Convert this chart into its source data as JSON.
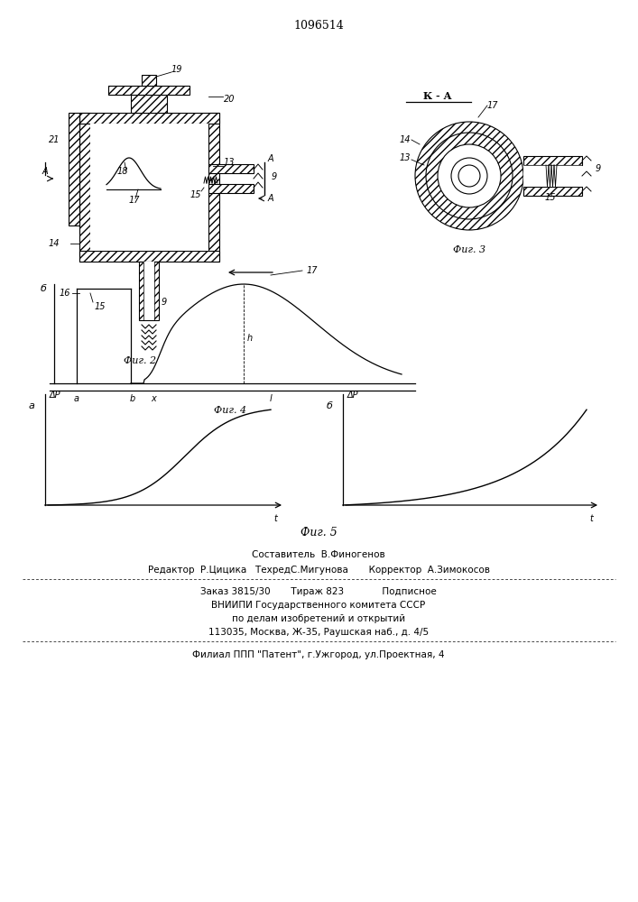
{
  "patent_number": "1096514",
  "background_color": "#ffffff",
  "line_color": "#000000",
  "footer_line1": "Составитель  В.Финогенов",
  "footer_line2": "Редактор  Р.Цицика   ТехредС.Мигунова       Корректор  А.Зимокосов",
  "footer_line3": "Заказ 3815/30       Тираж 823             Подписное",
  "footer_line4": "ВНИИПИ Государственного комитета СССР",
  "footer_line5": "по делам изобретений и открытий",
  "footer_line6": "113035, Москва, Ж-35, Раушская наб., д. 4/5",
  "footer_line7": "Филиал ППП \"Патент\", г.Ужгород, ул.Проектная, 4"
}
